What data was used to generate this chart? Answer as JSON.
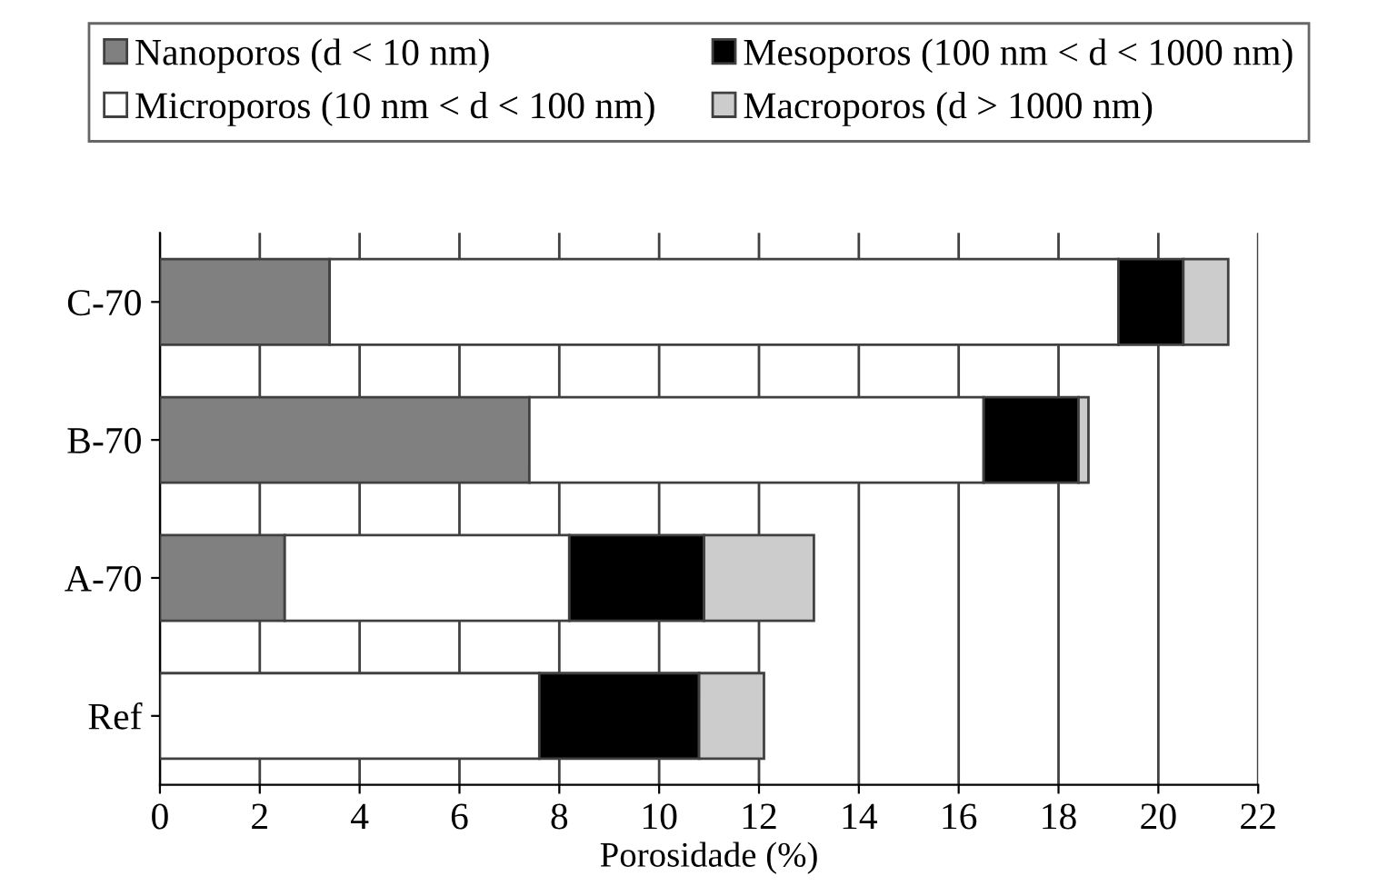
{
  "chart_data": {
    "type": "bar",
    "orientation": "horizontal",
    "stacked": true,
    "xlabel": "Porosidade (%)",
    "categories": [
      "C-70",
      "B-70",
      "A-70",
      "Ref"
    ],
    "series": [
      {
        "name": "Nanoporos (d < 10 nm)",
        "color": "#808080",
        "values": [
          3.4,
          7.4,
          2.5,
          0
        ]
      },
      {
        "name": "Microporos (10 nm < d < 100 nm)",
        "color": "#ffffff",
        "values": [
          15.8,
          9.1,
          5.7,
          7.6
        ]
      },
      {
        "name": "Mesoporos (100 nm < d < 1000 nm)",
        "color": "#000000",
        "values": [
          1.3,
          1.9,
          2.7,
          3.2
        ]
      },
      {
        "name": "Macroporos (d > 1000 nm)",
        "color": "#cccccc",
        "values": [
          0.9,
          0.2,
          2.2,
          1.3
        ]
      }
    ],
    "xlim": [
      0,
      22
    ],
    "xticks": [
      0,
      2,
      4,
      6,
      8,
      10,
      12,
      14,
      16,
      18,
      20,
      22
    ],
    "grid": "x",
    "legend": "top"
  }
}
